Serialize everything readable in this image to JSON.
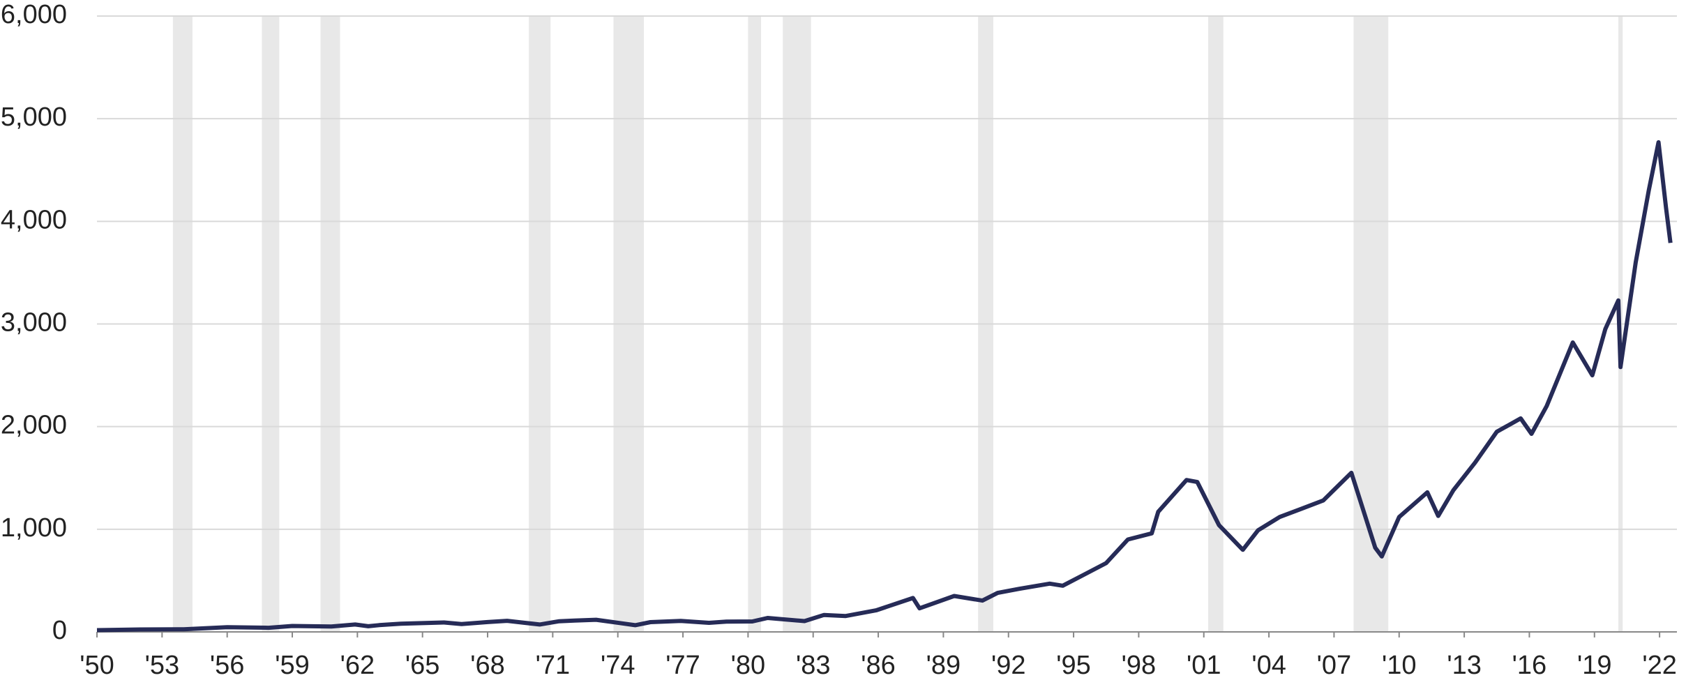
{
  "chart_data": {
    "type": "line",
    "x": [
      1950,
      1952,
      1954,
      1955,
      1956,
      1957.9,
      1959,
      1960.8,
      1961.9,
      1962.5,
      1963,
      1964,
      1966,
      1966.8,
      1968,
      1968.9,
      1970.4,
      1971.3,
      1972,
      1973,
      1974.8,
      1975.5,
      1976.9,
      1978.2,
      1979,
      1980.2,
      1980.9,
      1982.6,
      1983.5,
      1984.5,
      1985.9,
      1987.6,
      1987.9,
      1989.5,
      1990.8,
      1991.5,
      1992.5,
      1993.9,
      1994.5,
      1995.5,
      1996.5,
      1997.5,
      1998.6,
      1998.9,
      2000.2,
      2000.7,
      2001.7,
      2002.8,
      2003.5,
      2004.5,
      2005.5,
      2006.5,
      2007.8,
      2008.9,
      2009.2,
      2010,
      2011.3,
      2011.8,
      2012.5,
      2013.5,
      2014.5,
      2015.6,
      2016.1,
      2016.8,
      2018,
      2018.9,
      2019.5,
      2020.1,
      2020.2,
      2020.9,
      2021.5,
      2021.95,
      2022.3,
      2022.5
    ],
    "series": [
      {
        "color": "#262b57",
        "values": [
          17,
          24,
          26,
          36,
          46,
          40,
          58,
          53,
          72,
          55,
          66,
          80,
          92,
          77,
          96,
          108,
          72,
          104,
          110,
          118,
          65,
          95,
          107,
          88,
          100,
          102,
          136,
          105,
          165,
          155,
          210,
          330,
          230,
          350,
          305,
          380,
          420,
          470,
          450,
          560,
          670,
          900,
          960,
          1170,
          1480,
          1460,
          1040,
          800,
          990,
          1120,
          1200,
          1280,
          1550,
          820,
          735,
          1120,
          1360,
          1130,
          1380,
          1650,
          1950,
          2080,
          1930,
          2200,
          2820,
          2500,
          2950,
          3230,
          2580,
          3600,
          4300,
          4770,
          4130,
          3790
        ]
      }
    ],
    "recessions": [
      [
        1953.5,
        1954.4
      ],
      [
        1957.6,
        1958.4
      ],
      [
        1960.3,
        1961.2
      ],
      [
        1969.9,
        1970.9
      ],
      [
        1973.8,
        1975.2
      ],
      [
        1980.0,
        1980.6
      ],
      [
        1981.6,
        1982.9
      ],
      [
        1990.6,
        1991.3
      ],
      [
        2001.2,
        2001.9
      ],
      [
        2007.9,
        2009.5
      ],
      [
        2020.1,
        2020.3
      ]
    ],
    "recession_color": "#e8e8e8",
    "xlim": [
      1950,
      2022.8
    ],
    "ylim": [
      0,
      6000
    ],
    "xticks": [
      {
        "value": 1950,
        "label": "'50"
      },
      {
        "value": 1953,
        "label": "'53"
      },
      {
        "value": 1956,
        "label": "'56"
      },
      {
        "value": 1959,
        "label": "'59"
      },
      {
        "value": 1962,
        "label": "'62"
      },
      {
        "value": 1965,
        "label": "'65"
      },
      {
        "value": 1968,
        "label": "'68"
      },
      {
        "value": 1971,
        "label": "'71"
      },
      {
        "value": 1974,
        "label": "'74"
      },
      {
        "value": 1977,
        "label": "'77"
      },
      {
        "value": 1980,
        "label": "'80"
      },
      {
        "value": 1983,
        "label": "'83"
      },
      {
        "value": 1986,
        "label": "'86"
      },
      {
        "value": 1989,
        "label": "'89"
      },
      {
        "value": 1992,
        "label": "'92"
      },
      {
        "value": 1995,
        "label": "'95"
      },
      {
        "value": 1998,
        "label": "'98"
      },
      {
        "value": 2001,
        "label": "'01"
      },
      {
        "value": 2004,
        "label": "'04"
      },
      {
        "value": 2007,
        "label": "'07"
      },
      {
        "value": 2010,
        "label": "'10"
      },
      {
        "value": 2013,
        "label": "'13"
      },
      {
        "value": 2016,
        "label": "'16"
      },
      {
        "value": 2019,
        "label": "'19"
      },
      {
        "value": 2022,
        "label": "'22"
      }
    ],
    "yticks": [
      0,
      {
        "value": 1000,
        "label": "1,000"
      },
      {
        "value": 2000,
        "label": "2,000"
      },
      {
        "value": 3000,
        "label": "3,000"
      },
      {
        "value": 4000,
        "label": "4,000"
      },
      {
        "value": 5000,
        "label": "5,000"
      },
      {
        "value": 6000,
        "label": "6,000"
      }
    ],
    "grid": true
  }
}
